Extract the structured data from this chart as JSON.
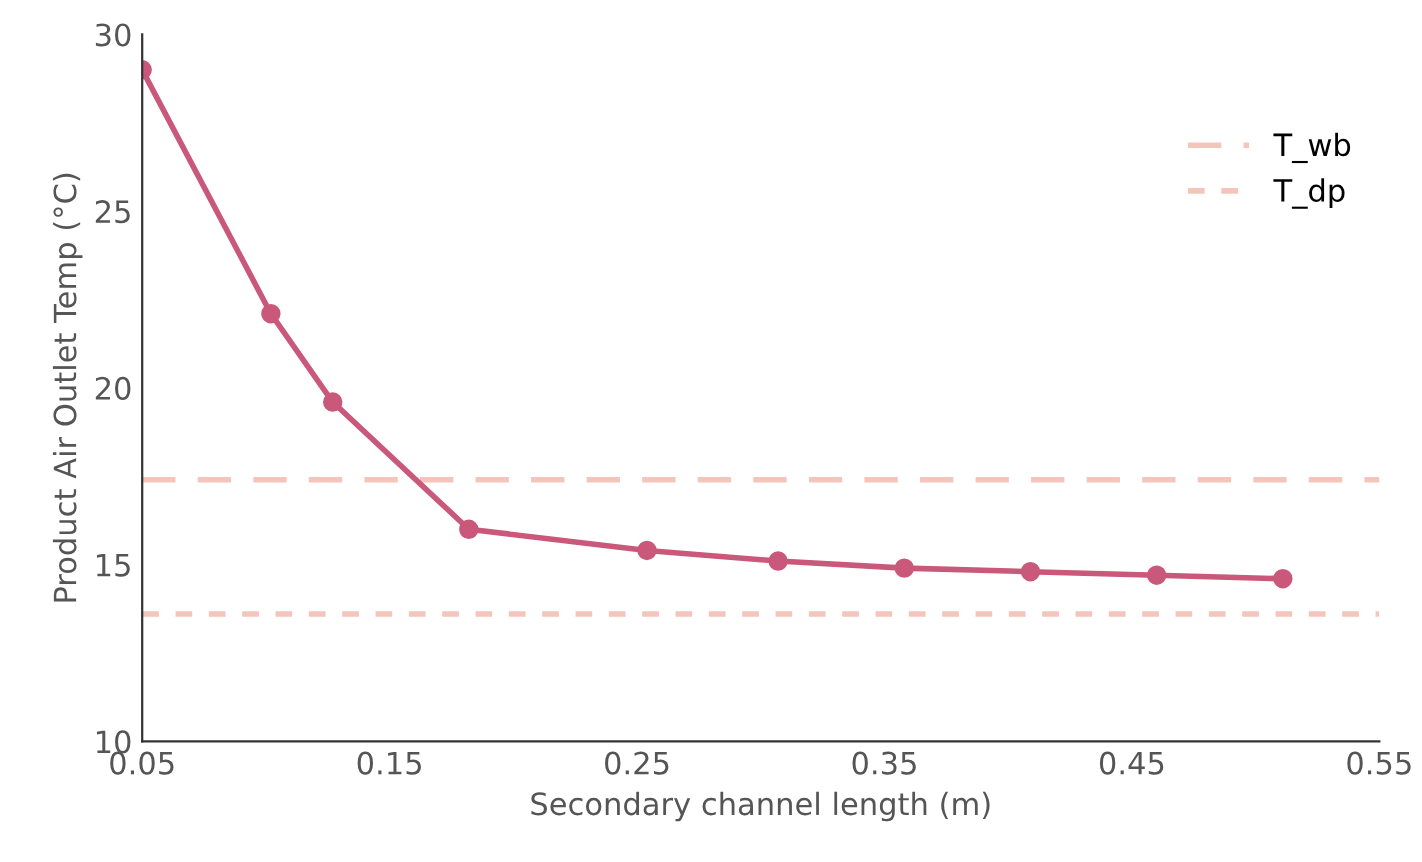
{
  "chart_data": {
    "type": "line",
    "xlabel": "Secondary channel length (m)",
    "ylabel": "Product Air Outlet Temp (°C)",
    "x": [
      0.05,
      0.102,
      0.127,
      0.182,
      0.254,
      0.307,
      0.358,
      0.409,
      0.46,
      0.511
    ],
    "series": [
      {
        "color": "#c9587b",
        "values": [
          29.0,
          22.1,
          19.6,
          16.0,
          15.4,
          15.1,
          14.9,
          14.8,
          14.7,
          14.6
        ]
      }
    ],
    "marker": "circle",
    "line_style": "solid",
    "ref_lines": [
      {
        "axis": "y",
        "value": 17.4,
        "label": "T_wb",
        "color": "#f4c5bb",
        "line_style": "dashed"
      },
      {
        "axis": "y",
        "value": 13.6,
        "label": "T_dp",
        "color": "#f4c5bb",
        "line_style": "dotted"
      }
    ],
    "xlim": [
      0.05,
      0.55
    ],
    "xticks": [
      0.05,
      0.15,
      0.25,
      0.35,
      0.45,
      0.55
    ],
    "ylim": [
      10,
      30
    ],
    "yticks": [
      10,
      15,
      20,
      25,
      30
    ],
    "grid": false,
    "legend": "top right"
  }
}
